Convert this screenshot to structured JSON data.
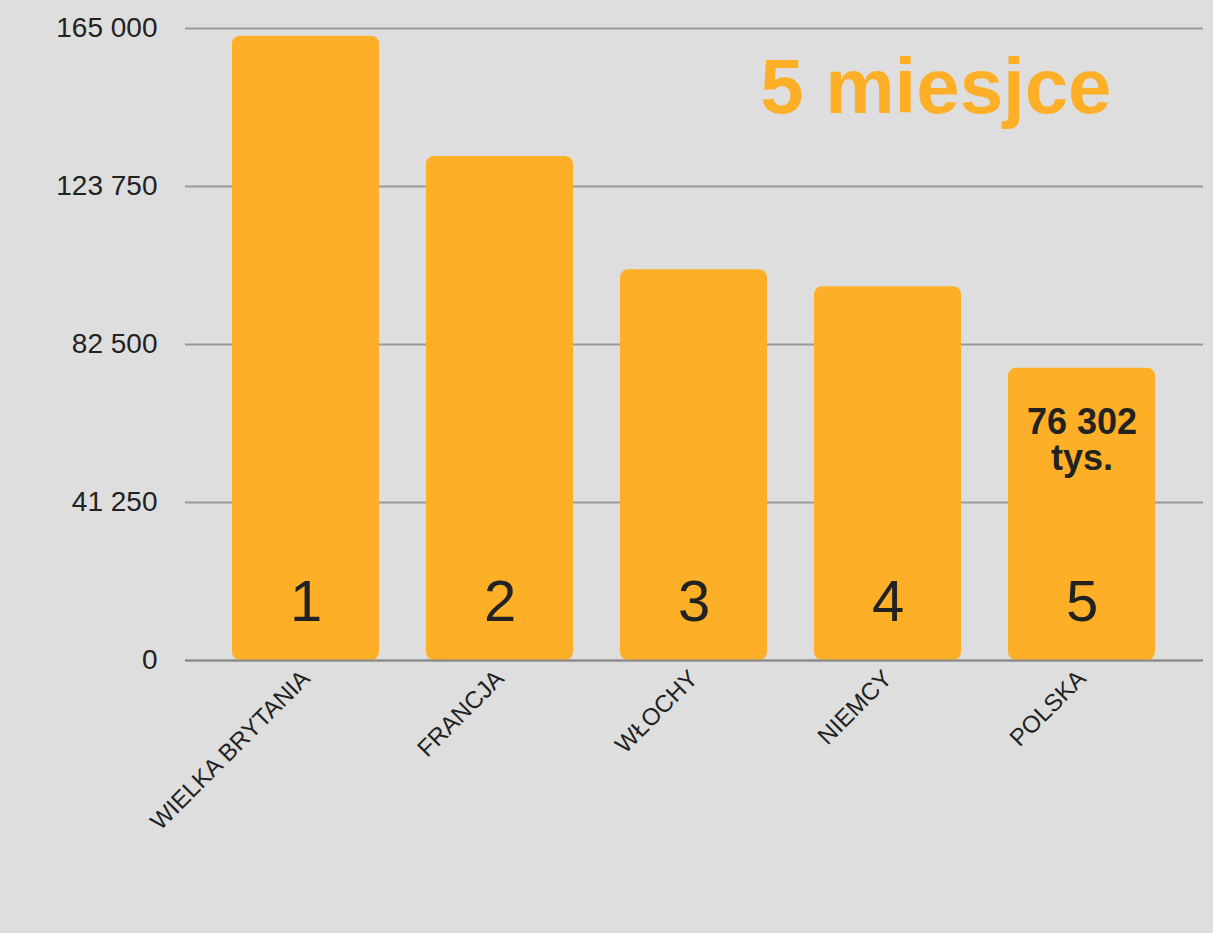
{
  "chart_data": {
    "type": "bar",
    "title": "5 miesjce",
    "categories": [
      "WIELKA BRYTANIA",
      "FRANCJA",
      "WŁOCHY",
      "NIEMCY",
      "POLSKA"
    ],
    "values": [
      163000,
      131600,
      102000,
      97600,
      76302
    ],
    "value_labels": [
      null,
      null,
      null,
      null,
      "76 302 tys."
    ],
    "ranks": [
      1,
      2,
      3,
      4,
      5
    ],
    "color": "#fdb027",
    "ylim": [
      0,
      165000
    ],
    "yticks": [
      0,
      {
        "value": 41250,
        "label": "41 250"
      },
      {
        "value": 82500,
        "label": "82 500"
      },
      {
        "value": 123750,
        "label": "123 750"
      },
      {
        "value": 165000,
        "label": "165 000"
      }
    ],
    "grid": true,
    "data_labels": true
  }
}
